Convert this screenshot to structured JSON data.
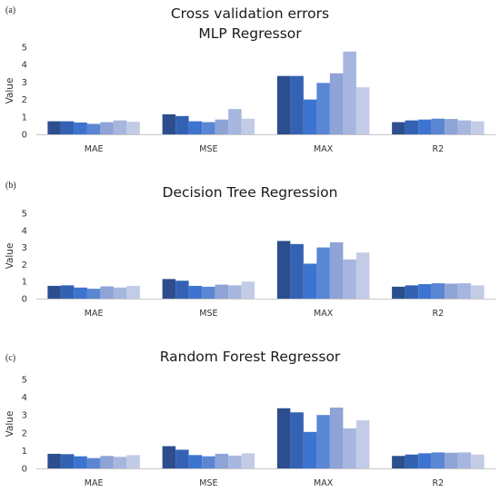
{
  "figure": {
    "colors": [
      "#2c4e8e",
      "#3462b3",
      "#3d74cf",
      "#5a86d4",
      "#8ea3d6",
      "#a6b6df",
      "#c2cce7"
    ]
  },
  "chart_data": [
    {
      "type": "bar",
      "panel": "(a)",
      "title": "Cross validation errors",
      "subtitle": "MLP Regressor",
      "xlabel": "",
      "ylabel": "Value",
      "ylim": [
        0,
        5
      ],
      "yticks": [
        0,
        1,
        2,
        3,
        4,
        5
      ],
      "grid": false,
      "categories": [
        "MAE",
        "MSE",
        "MAX",
        "R2"
      ],
      "series": [
        {
          "values": [
            0.75,
            1.15,
            3.35,
            0.7
          ]
        },
        {
          "values": [
            0.75,
            1.05,
            3.35,
            0.8
          ]
        },
        {
          "values": [
            0.68,
            0.75,
            2.0,
            0.85
          ]
        },
        {
          "values": [
            0.6,
            0.7,
            2.95,
            0.9
          ]
        },
        {
          "values": [
            0.7,
            0.85,
            3.5,
            0.88
          ]
        },
        {
          "values": [
            0.8,
            1.45,
            4.75,
            0.8
          ]
        },
        {
          "values": [
            0.72,
            0.9,
            2.7,
            0.75
          ]
        }
      ]
    },
    {
      "type": "bar",
      "panel": "(b)",
      "title": "Decision Tree Regression",
      "subtitle": "",
      "xlabel": "",
      "ylabel": "Value",
      "ylim": [
        0,
        5
      ],
      "yticks": [
        0,
        1,
        2,
        3,
        4,
        5
      ],
      "grid": false,
      "categories": [
        "MAE",
        "MSE",
        "MAX",
        "R2"
      ],
      "series": [
        {
          "values": [
            0.75,
            1.15,
            3.38,
            0.7
          ]
        },
        {
          "values": [
            0.78,
            1.05,
            3.2,
            0.78
          ]
        },
        {
          "values": [
            0.65,
            0.75,
            2.05,
            0.85
          ]
        },
        {
          "values": [
            0.58,
            0.7,
            3.0,
            0.9
          ]
        },
        {
          "values": [
            0.72,
            0.82,
            3.3,
            0.88
          ]
        },
        {
          "values": [
            0.65,
            0.78,
            2.3,
            0.9
          ]
        },
        {
          "values": [
            0.75,
            1.0,
            2.7,
            0.78
          ]
        }
      ]
    },
    {
      "type": "bar",
      "panel": "(c)",
      "title": "Random Forest Regressor",
      "subtitle": "",
      "xlabel": "",
      "ylabel": "Value",
      "ylim": [
        0,
        5
      ],
      "yticks": [
        0,
        1,
        2,
        3,
        4,
        5
      ],
      "grid": false,
      "categories": [
        "MAE",
        "MSE",
        "MAX",
        "R2"
      ],
      "series": [
        {
          "values": [
            0.82,
            1.25,
            3.38,
            0.7
          ]
        },
        {
          "values": [
            0.8,
            1.05,
            3.15,
            0.78
          ]
        },
        {
          "values": [
            0.68,
            0.75,
            2.05,
            0.85
          ]
        },
        {
          "values": [
            0.58,
            0.68,
            3.0,
            0.9
          ]
        },
        {
          "values": [
            0.7,
            0.82,
            3.42,
            0.88
          ]
        },
        {
          "values": [
            0.65,
            0.72,
            2.25,
            0.9
          ]
        },
        {
          "values": [
            0.75,
            0.85,
            2.7,
            0.78
          ]
        }
      ]
    }
  ]
}
